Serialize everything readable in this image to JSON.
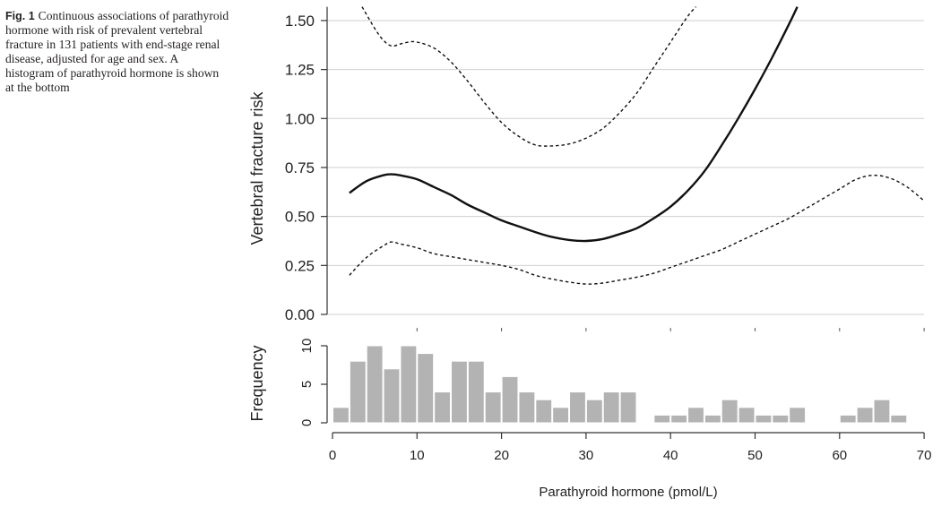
{
  "caption": {
    "label": "Fig. 1",
    "text": "Continuous associations of parathyroid hormone with risk of prevalent vertebral fracture in 131 patients with end-stage renal disease, adjusted for age and sex. A histogram of parathyroid hormone is shown at the bottom"
  },
  "chart_data": [
    {
      "type": "line",
      "panel": "risk",
      "title": "",
      "xlabel": "Parathyroid hormone (pmol/L)",
      "ylabel": "Vertebral fracture risk",
      "xlim": [
        0,
        70
      ],
      "ylim": [
        0,
        1.5
      ],
      "yticks": [
        "0.00",
        "0.25",
        "0.50",
        "0.75",
        "1.00",
        "1.25",
        "1.50"
      ],
      "grid": true,
      "series": [
        {
          "style": "solid",
          "x": [
            2,
            4,
            6,
            7,
            8,
            10,
            12,
            14,
            16,
            18,
            20,
            22,
            24,
            26,
            28,
            30,
            32,
            34,
            36,
            38,
            40,
            42,
            44,
            46,
            48,
            50,
            52,
            54,
            55
          ],
          "y": [
            0.62,
            0.68,
            0.71,
            0.715,
            0.71,
            0.69,
            0.65,
            0.61,
            0.56,
            0.52,
            0.48,
            0.45,
            0.42,
            0.395,
            0.38,
            0.375,
            0.385,
            0.41,
            0.44,
            0.49,
            0.55,
            0.63,
            0.73,
            0.86,
            1.0,
            1.15,
            1.31,
            1.48,
            1.57
          ]
        },
        {
          "style": "dashed",
          "x": [
            3.5,
            5,
            6,
            7,
            8,
            9,
            10,
            12,
            14,
            16,
            18,
            20,
            22,
            24,
            26,
            28,
            30,
            32,
            34,
            36,
            38,
            40,
            42,
            43
          ],
          "y": [
            1.57,
            1.46,
            1.4,
            1.37,
            1.38,
            1.39,
            1.39,
            1.36,
            1.29,
            1.19,
            1.08,
            0.98,
            0.91,
            0.865,
            0.86,
            0.87,
            0.9,
            0.95,
            1.03,
            1.13,
            1.26,
            1.39,
            1.52,
            1.57
          ]
        },
        {
          "style": "dashed",
          "x": [
            2,
            4,
            6,
            7,
            8,
            10,
            12,
            14,
            16,
            18,
            20,
            22,
            24,
            26,
            28,
            30,
            32,
            34,
            36,
            38,
            40,
            42,
            44,
            46,
            48,
            50,
            52,
            54,
            56,
            58,
            60,
            62,
            64,
            66,
            68,
            70
          ],
          "y": [
            0.2,
            0.29,
            0.35,
            0.37,
            0.36,
            0.34,
            0.31,
            0.295,
            0.28,
            0.265,
            0.25,
            0.23,
            0.2,
            0.18,
            0.165,
            0.155,
            0.16,
            0.175,
            0.19,
            0.21,
            0.24,
            0.27,
            0.3,
            0.33,
            0.37,
            0.41,
            0.45,
            0.49,
            0.54,
            0.59,
            0.64,
            0.69,
            0.71,
            0.695,
            0.65,
            0.58
          ]
        }
      ]
    },
    {
      "type": "bar",
      "panel": "histogram",
      "ylabel": "Frequency",
      "xlabel": "Parathyroid hormone (pmol/L)",
      "xlim": [
        0,
        70
      ],
      "ylim": [
        0,
        10
      ],
      "yticks": [
        "0",
        "5",
        "10"
      ],
      "xticks": [
        "0",
        "10",
        "20",
        "30",
        "40",
        "50",
        "60",
        "70"
      ],
      "bin_width": 2,
      "bin_starts": [
        0,
        2,
        4,
        6,
        8,
        10,
        12,
        14,
        16,
        18,
        20,
        22,
        24,
        26,
        28,
        30,
        32,
        34,
        36,
        38,
        40,
        42,
        44,
        46,
        48,
        50,
        52,
        54,
        56,
        58,
        60,
        62,
        64,
        66
      ],
      "values": [
        2,
        8,
        10,
        7,
        10,
        9,
        4,
        8,
        8,
        4,
        6,
        4,
        3,
        2,
        4,
        3,
        4,
        4,
        0,
        1,
        1,
        2,
        1,
        3,
        2,
        1,
        1,
        2,
        0,
        0,
        1,
        2,
        3,
        1
      ]
    }
  ]
}
